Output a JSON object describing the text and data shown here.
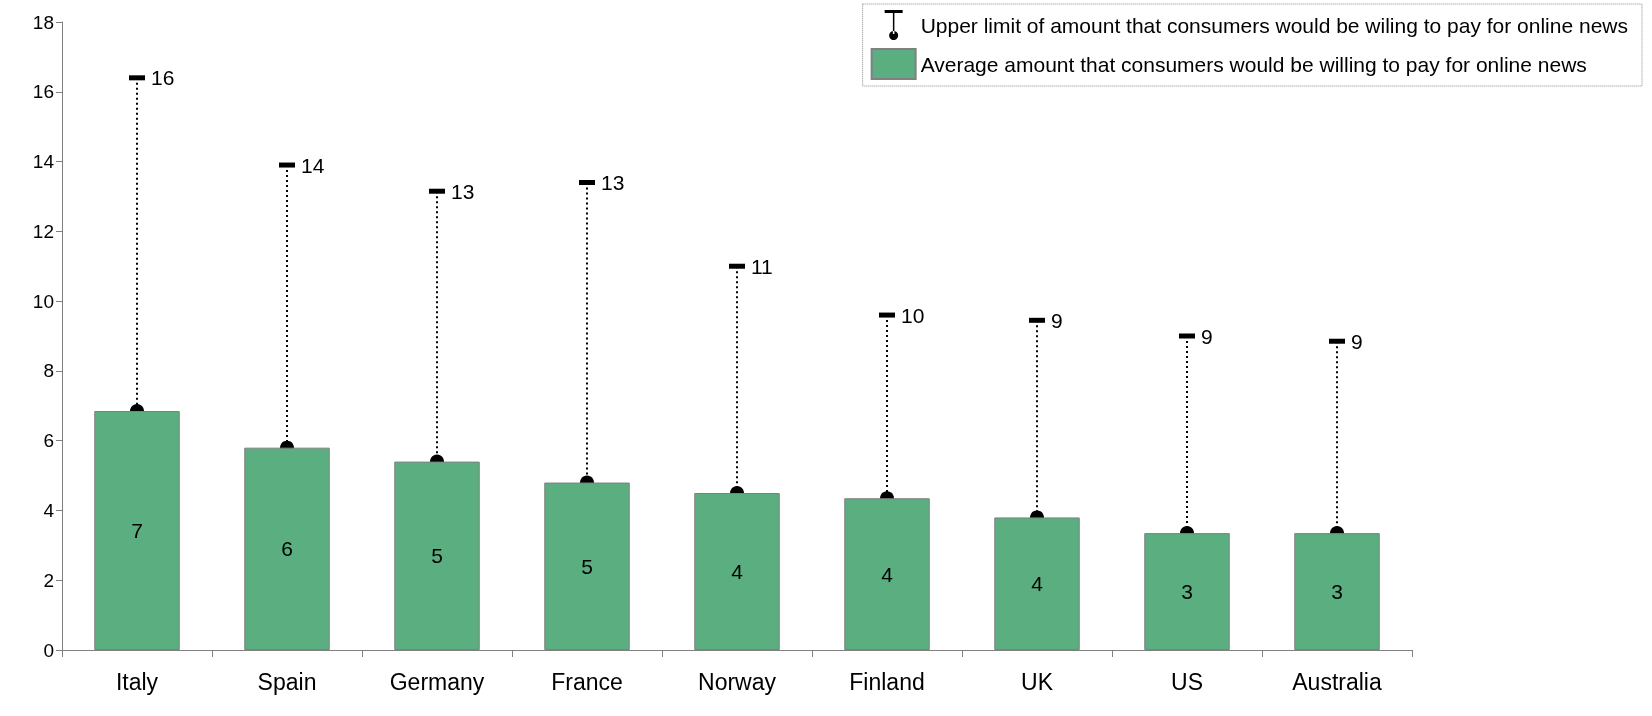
{
  "chart_data": {
    "type": "bar",
    "categories": [
      "Italy",
      "Spain",
      "Germany",
      "France",
      "Norway",
      "Finland",
      "UK",
      "US",
      "Australia"
    ],
    "series": [
      {
        "type": "bar",
        "name": "Average amount that consumers would be willing to pay for online news",
        "color": "#5aae80",
        "values": [
          6.85,
          5.8,
          5.4,
          4.8,
          4.5,
          4.35,
          3.8,
          3.35,
          3.35
        ],
        "value_labels": [
          "7",
          "6",
          "5",
          "5",
          "4",
          "4",
          "4",
          "3",
          "3"
        ]
      },
      {
        "type": "scatter",
        "name": "Upper limit of amount that consumers would be wiling to pay for online news",
        "color": "#000000",
        "values": [
          16.4,
          13.9,
          13.15,
          13.4,
          11.0,
          9.6,
          9.45,
          9.0,
          8.85
        ],
        "value_labels": [
          "16",
          "14",
          "13",
          "13",
          "11",
          "10",
          "9",
          "9",
          "9"
        ],
        "line_style": "dotted"
      }
    ],
    "ylim": [
      0,
      18
    ],
    "yticks": [
      0,
      2,
      4,
      6,
      8,
      10,
      12,
      14,
      16,
      18
    ],
    "grid": false,
    "legend": "top right"
  }
}
